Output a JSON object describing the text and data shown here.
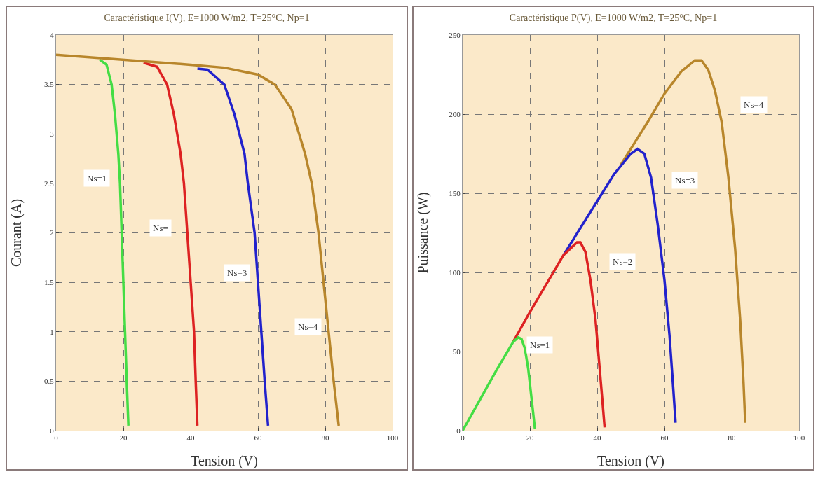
{
  "chart_data": [
    {
      "type": "line",
      "title": "Caractéristique I(V), E=1000 W/m2, T=25°C, Np=1",
      "xlabel": "Tension (V)",
      "ylabel": "Courant (A)",
      "xlim": [
        0,
        100
      ],
      "ylim": [
        0,
        4
      ],
      "xticks": [
        0,
        20,
        40,
        60,
        80,
        100
      ],
      "yticks": [
        0,
        0.5,
        1,
        1.5,
        2,
        2.5,
        3,
        3.5,
        4
      ],
      "grid": true,
      "series": [
        {
          "color": "#44dd44",
          "x": [
            13,
            15,
            16.5,
            17.5,
            18.5,
            19,
            19.5,
            20,
            20.5,
            21,
            21.5
          ],
          "values": [
            3.75,
            3.7,
            3.5,
            3.2,
            2.8,
            2.5,
            2,
            1.5,
            1,
            0.5,
            0.05
          ]
        },
        {
          "color": "#dd2222",
          "x": [
            26,
            30,
            33,
            35,
            37,
            38,
            39,
            40,
            41,
            41.5,
            42
          ],
          "values": [
            3.72,
            3.68,
            3.5,
            3.2,
            2.8,
            2.5,
            2,
            1.5,
            1,
            0.5,
            0.05
          ]
        },
        {
          "color": "#2222cc",
          "x": [
            42,
            45,
            50,
            53,
            56,
            57,
            59,
            60,
            61,
            62,
            63
          ],
          "values": [
            3.66,
            3.65,
            3.5,
            3.2,
            2.8,
            2.5,
            2,
            1.5,
            1,
            0.5,
            0.05
          ]
        },
        {
          "color": "#b8862b",
          "x": [
            0,
            40,
            50,
            60,
            65,
            70,
            74,
            76,
            78,
            79.5,
            81,
            82.5,
            84
          ],
          "values": [
            3.8,
            3.7,
            3.67,
            3.6,
            3.5,
            3.25,
            2.8,
            2.5,
            2,
            1.5,
            1,
            0.5,
            0.05
          ]
        }
      ],
      "annotations": [
        {
          "text": "Ns=1",
          "x": 12,
          "y": 2.55
        },
        {
          "text": "Ns=",
          "x": 31,
          "y": 2.05
        },
        {
          "text": "Ns=3",
          "x": 53.7,
          "y": 1.6
        },
        {
          "text": "Ns=4",
          "x": 74.8,
          "y": 1.05
        }
      ]
    },
    {
      "type": "line",
      "title": "Caractéristique P(V), E=1000 W/m2, T=25°C, Np=1",
      "xlabel": "Tension (V)",
      "ylabel": "Puissance (W)",
      "xlim": [
        0,
        100
      ],
      "ylim": [
        0,
        250
      ],
      "xticks": [
        0,
        20,
        40,
        60,
        80,
        100
      ],
      "yticks": [
        0,
        50,
        100,
        150,
        200,
        250
      ],
      "grid": true,
      "series": [
        {
          "color": "#b8862b",
          "x": [
            47,
            55,
            60,
            65,
            69,
            71,
            73,
            75,
            77,
            79,
            81,
            82.5,
            83.5,
            84
          ],
          "values": [
            168,
            195,
            213,
            227,
            234,
            234,
            228,
            215,
            195,
            160,
            115,
            70,
            30,
            5
          ]
        },
        {
          "color": "#2222cc",
          "x": [
            30,
            40,
            45,
            50,
            52,
            54,
            56,
            58,
            60,
            61.5,
            62.5,
            63.3
          ],
          "values": [
            111,
            145,
            162,
            175,
            178,
            175,
            160,
            130,
            95,
            60,
            30,
            5
          ]
        },
        {
          "color": "#dd2222",
          "x": [
            15,
            20,
            30,
            34,
            35,
            36.5,
            38,
            39.5,
            40.5,
            41.5,
            42.2
          ],
          "values": [
            56,
            75,
            111,
            119,
            119,
            113,
            95,
            70,
            45,
            20,
            2
          ]
        },
        {
          "color": "#44dd44",
          "x": [
            0,
            5,
            10,
            15,
            16.5,
            17.5,
            18.5,
            19.5,
            20.5,
            21.5
          ],
          "values": [
            0,
            19,
            38,
            56,
            59,
            58,
            52,
            39,
            20,
            1
          ]
        }
      ],
      "annotations": [
        {
          "text": "Ns=1",
          "x": 23,
          "y": 54
        },
        {
          "text": "Ns=2",
          "x": 47.5,
          "y": 107
        },
        {
          "text": "Ns=3",
          "x": 66,
          "y": 158
        },
        {
          "text": "Ns=4",
          "x": 86.5,
          "y": 206
        }
      ]
    }
  ]
}
